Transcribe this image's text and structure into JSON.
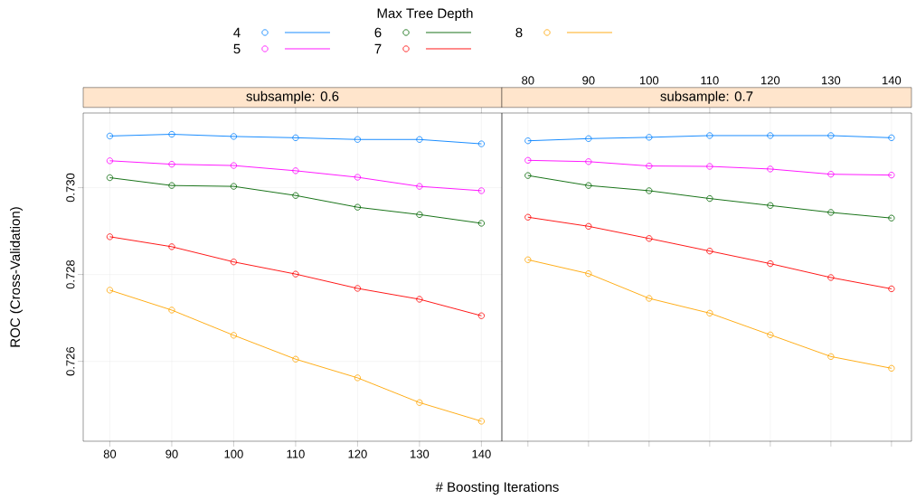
{
  "chart_data": [
    {
      "type": "line",
      "title": "subsample: 0.6",
      "xlabel": "# Boosting Iterations",
      "ylabel": "ROC (Cross-Validation)",
      "legend_title": "Max Tree Depth",
      "legend": "top",
      "x": [
        80,
        90,
        100,
        110,
        120,
        130,
        140
      ],
      "xlim": [
        75.7,
        143.3
      ],
      "xticks": [
        80,
        90,
        100,
        110,
        120,
        130,
        140
      ],
      "ylim": [
        0.72416,
        0.73172
      ],
      "yticks": [
        {
          "value": 0.726,
          "label": "0.726"
        },
        {
          "value": 0.728,
          "label": "0.728"
        },
        {
          "value": 0.73,
          "label": "0.730"
        }
      ],
      "grid": true,
      "marker": "circle",
      "line_style": "solid",
      "series": [
        {
          "name": "4",
          "color": "#0080ff",
          "values": [
            0.73119,
            0.73123,
            0.73118,
            0.73115,
            0.73111,
            0.73111,
            0.73101
          ]
        },
        {
          "name": "5",
          "color": "#ff00ff",
          "values": [
            0.73062,
            0.73054,
            0.73051,
            0.73039,
            0.73024,
            0.73003,
            0.72993
          ]
        },
        {
          "name": "6",
          "color": "#006400",
          "values": [
            0.73023,
            0.73005,
            0.73003,
            0.72982,
            0.72955,
            0.72938,
            0.72918
          ]
        },
        {
          "name": "7",
          "color": "#ff0000",
          "values": [
            0.72887,
            0.72864,
            0.72829,
            0.72801,
            0.72768,
            0.72743,
            0.72705
          ]
        },
        {
          "name": "8",
          "color": "#ffa500",
          "values": [
            0.72764,
            0.72718,
            0.7266,
            0.72605,
            0.72562,
            0.72505,
            0.72462
          ]
        }
      ]
    },
    {
      "type": "line",
      "title": "subsample: 0.7",
      "x": [
        80,
        90,
        100,
        110,
        120,
        130,
        140
      ],
      "xlim": [
        75.7,
        143.3
      ],
      "xticks": [
        80,
        90,
        100,
        110,
        120,
        130,
        140
      ],
      "ylim": [
        0.72416,
        0.73172
      ],
      "tick_labels": "x",
      "grid": true,
      "marker": "circle",
      "line_style": "solid",
      "series": [
        {
          "color": "#0080ff",
          "values": [
            0.73108,
            0.73113,
            0.73116,
            0.7312,
            0.7312,
            0.7312,
            0.73115
          ]
        },
        {
          "color": "#ff00ff",
          "values": [
            0.73063,
            0.7306,
            0.7305,
            0.73049,
            0.73043,
            0.73031,
            0.73029
          ]
        },
        {
          "color": "#006400",
          "values": [
            0.73028,
            0.73005,
            0.72993,
            0.72975,
            0.72959,
            0.72943,
            0.7293
          ]
        },
        {
          "color": "#ff0000",
          "values": [
            0.72932,
            0.72911,
            0.72883,
            0.72854,
            0.72825,
            0.72793,
            0.72767
          ]
        },
        {
          "color": "#ffa500",
          "values": [
            0.72834,
            0.72802,
            0.72745,
            0.72711,
            0.72661,
            0.72611,
            0.72584
          ]
        }
      ]
    }
  ]
}
